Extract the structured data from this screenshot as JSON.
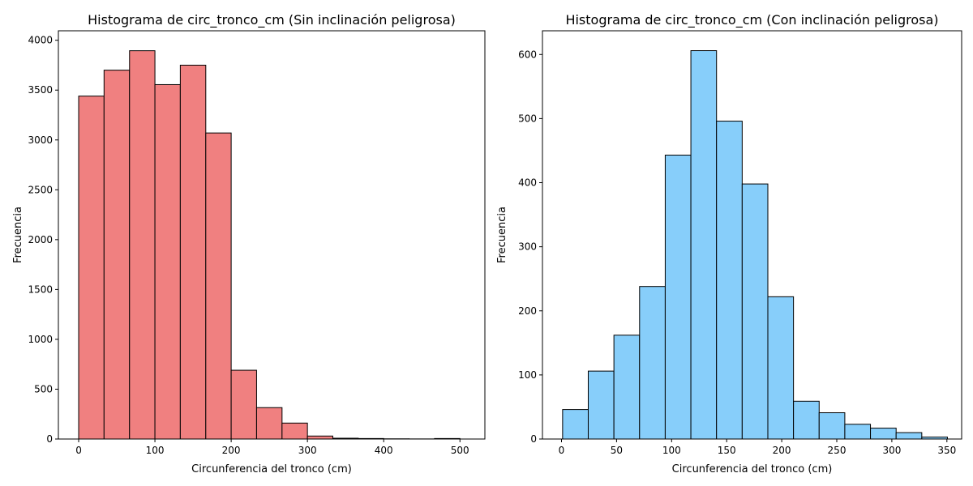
{
  "chart_data": [
    {
      "type": "bar",
      "title": "Histograma de circ_tronco_cm (Sin inclinación peligrosa)",
      "xlabel": "Circunferencia del tronco (cm)",
      "ylabel": "Frecuencia",
      "color": "#f08080",
      "edgecolor": "#000000",
      "xlim": [
        -26.6,
        532.7
      ],
      "ylim": [
        0,
        4095
      ],
      "xticks": [
        0,
        100,
        200,
        300,
        400,
        500
      ],
      "yticks": [
        0,
        500,
        1000,
        1500,
        2000,
        2500,
        3000,
        3500,
        4000
      ],
      "bin_edges": [
        0,
        33.3,
        66.7,
        100,
        133.3,
        166.7,
        200,
        233.3,
        266.7,
        300,
        333.3,
        366.7,
        400,
        433.3,
        466.7,
        500
      ],
      "values": [
        3440,
        3700,
        3895,
        3555,
        3750,
        3070,
        690,
        315,
        160,
        30,
        8,
        5,
        2,
        1,
        5
      ]
    },
    {
      "type": "bar",
      "title": "Histograma de circ_tronco_cm (Con inclinación peligrosa)",
      "xlabel": "Circunferencia del tronco (cm)",
      "ylabel": "Frecuencia",
      "color": "#87cefa",
      "edgecolor": "#000000",
      "xlim": [
        -17.3,
        363.4
      ],
      "ylim": [
        0,
        637
      ],
      "xticks": [
        0,
        50,
        100,
        150,
        200,
        250,
        300,
        350
      ],
      "yticks": [
        0,
        100,
        200,
        300,
        400,
        500,
        600
      ],
      "bin_edges": [
        1,
        24.3,
        47.6,
        70.9,
        94.2,
        117.5,
        140.8,
        164.1,
        187.4,
        210.7,
        234,
        257.3,
        280.6,
        303.9,
        327.2,
        350.5
      ],
      "values": [
        46,
        106,
        162,
        238,
        443,
        606,
        496,
        398,
        222,
        59,
        41,
        23,
        17,
        10,
        3
      ]
    }
  ]
}
